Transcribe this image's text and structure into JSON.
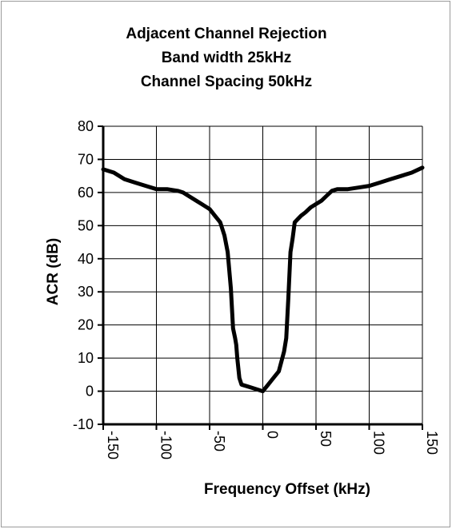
{
  "chart_data": {
    "type": "line",
    "title": [
      "Adjacent Channel Rejection",
      "Band width 25kHz",
      "Channel Spacing 50kHz"
    ],
    "xlabel": "Frequency Offset (kHz)",
    "ylabel": "ACR (dB)",
    "xlim": [
      -150,
      150
    ],
    "ylim": [
      -10,
      80
    ],
    "xticks": [
      -150,
      -100,
      -50,
      0,
      50,
      100,
      150
    ],
    "yticks": [
      80,
      70,
      60,
      50,
      40,
      30,
      20,
      10,
      0,
      -10
    ],
    "grid": true,
    "legend": "none",
    "series": [
      {
        "color": "#000000",
        "x": [
          -150,
          -140,
          -130,
          -120,
          -110,
          -100,
          -90,
          -80,
          -75,
          -70,
          -60,
          -50,
          -45,
          -40,
          -36,
          -33,
          -30,
          -28,
          -26,
          -25,
          -24,
          -22,
          -20,
          -15,
          -10,
          -5,
          0,
          5,
          10,
          15,
          20,
          22,
          24,
          26,
          28,
          30,
          33,
          36,
          40,
          45,
          50,
          55,
          60,
          65,
          70,
          80,
          90,
          100,
          110,
          120,
          130,
          140,
          150
        ],
        "y": [
          67,
          66,
          64,
          63,
          62,
          61,
          61,
          60.5,
          60,
          59,
          57,
          55,
          53,
          51,
          47,
          42,
          31,
          19,
          16,
          14,
          10,
          4,
          2,
          1.5,
          1,
          0.5,
          0,
          2,
          4,
          6,
          12,
          16,
          28,
          42,
          46,
          51,
          52,
          53,
          54,
          55.5,
          56.5,
          57.5,
          59,
          60.5,
          61,
          61,
          61.5,
          62,
          63,
          64,
          65,
          66,
          67.5
        ]
      }
    ]
  }
}
